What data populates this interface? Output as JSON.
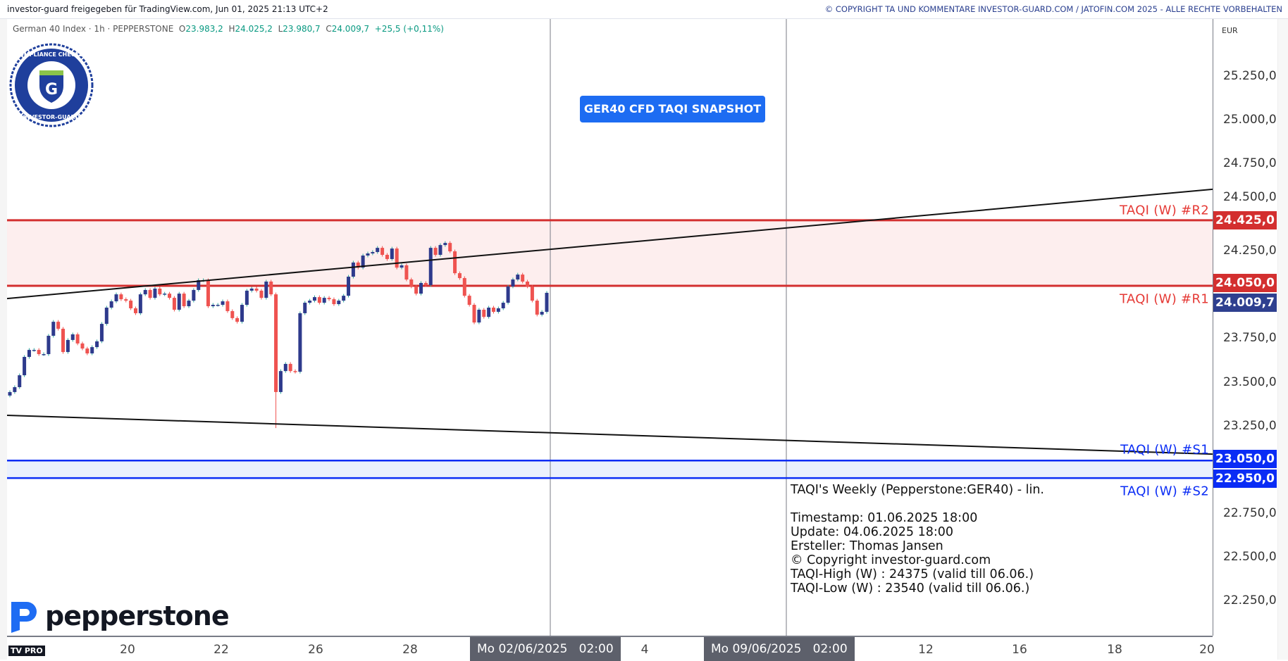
{
  "header": {
    "shared_by": "investor-guard freigegeben für TradingView.com, Jun 01, 2025 21:13 UTC+2",
    "copyright": "© COPYRIGHT TA UND KOMMENTARE INVESTOR-GUARD.COM / JATOFIN.COM 2025 - ALLE RECHTE VORBEHALTEN"
  },
  "legend": {
    "symbol": "German 40 Index · 1h · PEPPERSTONE",
    "o_label": "O",
    "o": "23.983,2",
    "h_label": "H",
    "h": "24.025,2",
    "l_label": "L",
    "l": "23.980,7",
    "c_label": "C",
    "c": "24.009,7",
    "change": "+25,5 (+0,11%)"
  },
  "logos": {
    "seal": "COMPLIANCE CHECKED INVESTOR-GUARD",
    "broker": "pepperstone",
    "platform": "TV PRO"
  },
  "annotation": {
    "snapshot": "GER40 CFD TAQI SNAPSHOT"
  },
  "info_box": {
    "title": "TAQI's Weekly (Pepperstone:GER40) - lin.",
    "lines": [
      "Timestamp: 01.06.2025 18:00",
      "Update: 04.06.2025 18:00",
      "Ersteller: Thomas Jansen",
      "© Copyright investor-guard.com",
      "TAQI-High (W) : 24375 (valid till 06.06.)",
      "TAQI-Low (W) : 23540 (valid till 06.06.)"
    ]
  },
  "levels": {
    "r2": {
      "label": "TAQI (W) #R2",
      "price": 24425,
      "tag": "24.425,0"
    },
    "r1": {
      "label": "TAQI (W) #R1",
      "price": 24050,
      "tag": "24.050,0"
    },
    "s1": {
      "label": "TAQI (W) #S1",
      "price": 23050,
      "tag": "23.050,0"
    },
    "s2": {
      "label": "TAQI (W) #S2",
      "price": 22950,
      "tag": "22.950,0"
    },
    "last": {
      "price": 24009.7,
      "tag": "24.009,7"
    }
  },
  "colors": {
    "resistance": "#d32f2f",
    "support": "#0a2cf5",
    "up_body": "#2e3a8c",
    "up_wick": "#26a69a",
    "down": "#ef5350",
    "last_tag": "#2e3f8f",
    "resistance_zone": "#fdeeee",
    "support_zone": "#eaf0fd"
  },
  "chart_data": {
    "type": "candlestick",
    "symbol": "German 40 Index",
    "interval": "1h",
    "currency": "EUR",
    "ylim": [
      22050,
      25500
    ],
    "y_ticks": [
      "25.250,0",
      "25.000,0",
      "24.750,0",
      "24.500,0",
      "24.250,0",
      "23.750,0",
      "23.500,0",
      "23.250,0",
      "22.750,0",
      "22.500,0",
      "22.250,0"
    ],
    "y_tick_values": [
      25250,
      25000,
      24750,
      24500,
      24250,
      23750,
      23500,
      23250,
      22750,
      22500,
      22250
    ],
    "x_ticks": [
      "20",
      "22",
      "26",
      "28",
      "4",
      "12",
      "16",
      "18",
      "20"
    ],
    "x_markers": [
      "Mo 02/06/2025   02:00",
      "Mo 09/06/2025   02:00"
    ],
    "closes": [
      23442,
      23470,
      23538,
      23643,
      23683,
      23683,
      23659,
      23659,
      23764,
      23844,
      23804,
      23671,
      23740,
      23772,
      23720,
      23691,
      23663,
      23699,
      23732,
      23832,
      23925,
      23961,
      24001,
      23973,
      23965,
      23921,
      23893,
      24001,
      24026,
      23981,
      24034,
      24001,
      24005,
      23981,
      23913,
      24005,
      23933,
      23965,
      24026,
      24082,
      24082,
      23933,
      23941,
      23941,
      23961,
      23905,
      23865,
      23844,
      23941,
      24022,
      24034,
      24022,
      23981,
      24074,
      24001,
      23442,
      23562,
      23603,
      23562,
      23558,
      23893,
      23953,
      23965,
      23985,
      23953,
      23981,
      23973,
      23945,
      23965,
      23993,
      24102,
      24183,
      24154,
      24223,
      24235,
      24243,
      24267,
      24227,
      24203,
      24263,
      24154,
      24167,
      24086,
      24046,
      24005,
      24066,
      24054,
      24267,
      24227,
      24283,
      24295,
      24247,
      24122,
      24094,
      23993,
      23941,
      23840,
      23913,
      23872,
      23925,
      23901,
      23921,
      23953,
      24046,
      24086,
      24114,
      24074,
      24046,
      23965,
      23885,
      23901,
      24009.7
    ],
    "notable_low": 23236,
    "trendlines": [
      {
        "start_price": 23977,
        "end_price": 24602
      },
      {
        "start_price": 23309,
        "end_price": 23087
      }
    ]
  }
}
